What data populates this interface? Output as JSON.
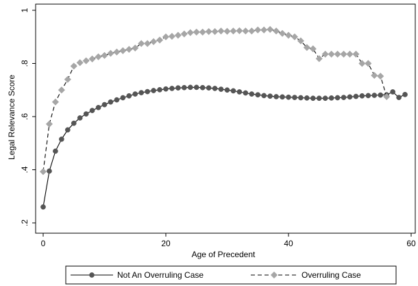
{
  "chart_data": {
    "type": "line",
    "xlabel": "Age of Precedent",
    "ylabel": "Legal Relevance Score",
    "xlim": [
      0,
      60
    ],
    "ylim": [
      0.2,
      1.0
    ],
    "x_ticks": [
      0,
      20,
      40,
      60
    ],
    "x_tick_labels": [
      "0",
      "20",
      "40",
      "60"
    ],
    "y_ticks": [
      0.2,
      0.4,
      0.6,
      0.8,
      1.0
    ],
    "y_tick_labels": [
      ".2",
      ".4",
      ".6",
      ".8",
      "1"
    ],
    "grid": false,
    "legend_position": "bottom",
    "series": [
      {
        "name": "Not An Overruling Case",
        "color": "#555555",
        "line_style": "solid",
        "marker": "circle",
        "x": [
          0,
          1,
          2,
          3,
          4,
          5,
          6,
          7,
          8,
          9,
          10,
          11,
          12,
          13,
          14,
          15,
          16,
          17,
          18,
          19,
          20,
          21,
          22,
          23,
          24,
          25,
          26,
          27,
          28,
          29,
          30,
          31,
          32,
          33,
          34,
          35,
          36,
          37,
          38,
          39,
          40,
          41,
          42,
          43,
          44,
          45,
          46,
          47,
          48,
          49,
          50,
          51,
          52,
          53,
          54,
          55,
          56,
          57,
          58,
          59
        ],
        "y": [
          0.26,
          0.395,
          0.47,
          0.515,
          0.55,
          0.575,
          0.595,
          0.61,
          0.623,
          0.634,
          0.645,
          0.655,
          0.663,
          0.671,
          0.678,
          0.685,
          0.69,
          0.694,
          0.698,
          0.701,
          0.704,
          0.706,
          0.708,
          0.709,
          0.71,
          0.71,
          0.709,
          0.708,
          0.706,
          0.703,
          0.7,
          0.697,
          0.693,
          0.689,
          0.685,
          0.682,
          0.679,
          0.677,
          0.675,
          0.674,
          0.673,
          0.672,
          0.671,
          0.67,
          0.669,
          0.669,
          0.669,
          0.67,
          0.671,
          0.672,
          0.674,
          0.676,
          0.678,
          0.679,
          0.68,
          0.681,
          0.682,
          0.693,
          0.672,
          0.683
        ]
      },
      {
        "name": "Overruling Case",
        "color": "#a6a6a6",
        "line_style": "dashed",
        "marker": "diamond",
        "x": [
          0,
          1,
          2,
          3,
          4,
          5,
          6,
          7,
          8,
          9,
          10,
          11,
          12,
          13,
          14,
          15,
          16,
          17,
          18,
          19,
          20,
          21,
          22,
          23,
          24,
          25,
          26,
          27,
          28,
          29,
          30,
          31,
          32,
          33,
          34,
          35,
          36,
          37,
          38,
          39,
          40,
          41,
          42,
          43,
          44,
          45,
          46,
          47,
          48,
          49,
          50,
          51,
          52,
          53,
          54,
          55,
          56
        ],
        "y": [
          0.393,
          0.572,
          0.655,
          0.7,
          0.74,
          0.79,
          0.803,
          0.81,
          0.817,
          0.825,
          0.83,
          0.838,
          0.843,
          0.848,
          0.853,
          0.858,
          0.875,
          0.875,
          0.882,
          0.888,
          0.9,
          0.902,
          0.906,
          0.911,
          0.916,
          0.918,
          0.918,
          0.92,
          0.92,
          0.922,
          0.921,
          0.922,
          0.923,
          0.922,
          0.922,
          0.926,
          0.926,
          0.928,
          0.922,
          0.913,
          0.906,
          0.9,
          0.885,
          0.86,
          0.855,
          0.818,
          0.835,
          0.835,
          0.835,
          0.835,
          0.835,
          0.835,
          0.8,
          0.8,
          0.755,
          0.752,
          0.675
        ]
      }
    ]
  }
}
